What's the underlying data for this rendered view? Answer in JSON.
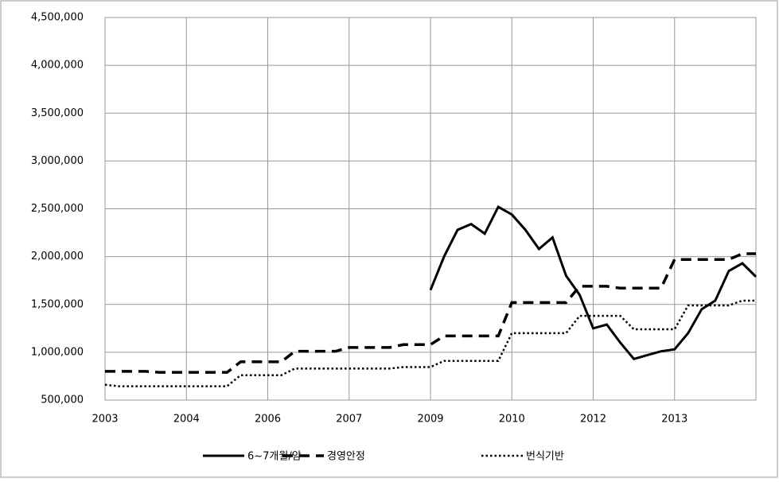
{
  "chart_data": {
    "type": "line",
    "categories": [
      "2003",
      null,
      null,
      null,
      null,
      null,
      "2004",
      null,
      null,
      null,
      null,
      null,
      "2006",
      null,
      null,
      null,
      null,
      null,
      "2007",
      null,
      null,
      null,
      null,
      null,
      "2009",
      null,
      null,
      null,
      null,
      null,
      "2010",
      null,
      null,
      null,
      null,
      null,
      "2012",
      null,
      null,
      null,
      null,
      null,
      "2013",
      null,
      null,
      null,
      null,
      null,
      null
    ],
    "series": [
      {
        "name": "6~7개월/암",
        "color": "#000000",
        "style": "solid",
        "values": [
          null,
          null,
          null,
          null,
          null,
          null,
          null,
          null,
          null,
          null,
          null,
          null,
          null,
          null,
          null,
          null,
          null,
          null,
          null,
          null,
          null,
          null,
          null,
          null,
          1650000,
          2000000,
          2280000,
          2340000,
          2240000,
          2520000,
          2440000,
          2280000,
          2080000,
          2200000,
          1800000,
          1600000,
          1250000,
          1290000,
          1100000,
          930000,
          970000,
          1010000,
          1030000,
          1200000,
          1450000,
          1540000,
          1850000,
          1930000,
          1790000
        ]
      },
      {
        "name": "경영안정",
        "color": "#000000",
        "style": "dashed",
        "values": [
          800000,
          800000,
          800000,
          800000,
          790000,
          790000,
          790000,
          790000,
          790000,
          790000,
          900000,
          900000,
          900000,
          900000,
          1010000,
          1010000,
          1010000,
          1010000,
          1050000,
          1050000,
          1050000,
          1050000,
          1080000,
          1080000,
          1080000,
          1170000,
          1170000,
          1170000,
          1170000,
          1170000,
          1520000,
          1520000,
          1520000,
          1520000,
          1520000,
          1690000,
          1690000,
          1690000,
          1670000,
          1670000,
          1670000,
          1670000,
          1970000,
          1970000,
          1970000,
          1970000,
          1970000,
          2030000,
          2030000
        ]
      },
      {
        "name": "번식기반",
        "color": "#000000",
        "style": "dotted",
        "values": [
          660000,
          645000,
          645000,
          645000,
          645000,
          645000,
          645000,
          645000,
          645000,
          645000,
          760000,
          760000,
          760000,
          760000,
          830000,
          830000,
          830000,
          830000,
          830000,
          830000,
          830000,
          830000,
          845000,
          845000,
          845000,
          910000,
          910000,
          910000,
          910000,
          910000,
          1200000,
          1200000,
          1200000,
          1200000,
          1200000,
          1380000,
          1380000,
          1380000,
          1380000,
          1240000,
          1240000,
          1240000,
          1240000,
          1490000,
          1490000,
          1490000,
          1490000,
          1540000,
          1540000
        ]
      }
    ],
    "ylim": [
      500000,
      4500000
    ],
    "yticks": [
      {
        "value": 500000,
        "label": "500,000"
      },
      {
        "value": 1000000,
        "label": "1,000,000"
      },
      {
        "value": 1500000,
        "label": "1,500,000"
      },
      {
        "value": 2000000,
        "label": "2,000,000"
      },
      {
        "value": 2500000,
        "label": "2,500,000"
      },
      {
        "value": 3000000,
        "label": "3,000,000"
      },
      {
        "value": 3500000,
        "label": "3,500,000"
      },
      {
        "value": 4000000,
        "label": "4,000,000"
      },
      {
        "value": 4500000,
        "label": "4,500,000"
      }
    ],
    "grid": true,
    "legend": "bottom"
  }
}
